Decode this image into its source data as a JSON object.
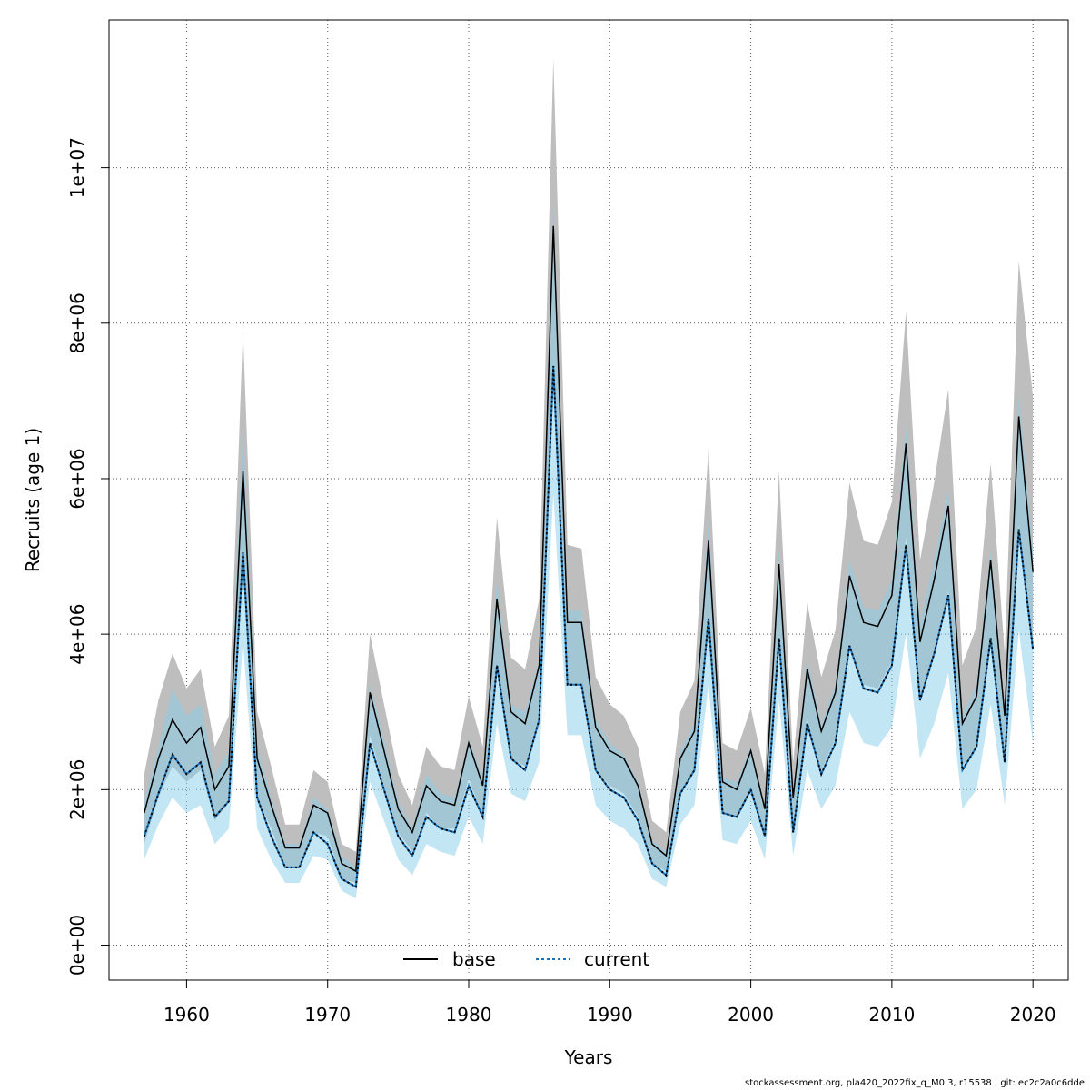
{
  "chart_data": {
    "type": "line",
    "xlabel": "Years",
    "ylabel": "Recruits (age 1)",
    "xlim": [
      1954.5,
      2022.5
    ],
    "ylim": [
      -450000,
      11900000
    ],
    "x_ticks": [
      1960,
      1970,
      1980,
      1990,
      2000,
      2010,
      2020
    ],
    "x_tick_labels": [
      "1960",
      "1970",
      "1980",
      "1990",
      "2000",
      "2010",
      "2020"
    ],
    "y_ticks": [
      0,
      2000000,
      4000000,
      6000000,
      8000000,
      10000000
    ],
    "y_tick_labels": [
      "0e+00",
      "2e+06",
      "4e+06",
      "6e+06",
      "8e+06",
      "1e+07"
    ],
    "grid": true,
    "legend_position": "bottom",
    "colors": {
      "base_line": "#000000",
      "base_band": "#bebebe",
      "current_line": "#000000",
      "current_dots": "#1a73b8",
      "current_band": "#87ceeb"
    },
    "x": [
      1957,
      1958,
      1959,
      1960,
      1961,
      1962,
      1963,
      1964,
      1965,
      1966,
      1967,
      1968,
      1969,
      1970,
      1971,
      1972,
      1973,
      1974,
      1975,
      1976,
      1977,
      1978,
      1979,
      1980,
      1981,
      1982,
      1983,
      1984,
      1985,
      1986,
      1987,
      1988,
      1989,
      1990,
      1991,
      1992,
      1993,
      1994,
      1995,
      1996,
      1997,
      1998,
      1999,
      2000,
      2001,
      2002,
      2003,
      2004,
      2005,
      2006,
      2007,
      2008,
      2009,
      2010,
      2011,
      2012,
      2013,
      2014,
      2015,
      2016,
      2017,
      2018,
      2019,
      2020
    ],
    "series": [
      {
        "name": "base",
        "values": [
          1700000,
          2400000,
          2900000,
          2600000,
          2800000,
          2000000,
          2300000,
          6100000,
          2400000,
          1800000,
          1250000,
          1250000,
          1800000,
          1700000,
          1050000,
          950000,
          3250000,
          2500000,
          1750000,
          1450000,
          2050000,
          1850000,
          1800000,
          2600000,
          2050000,
          4450000,
          3000000,
          2850000,
          3600000,
          9250000,
          4150000,
          4150000,
          2800000,
          2500000,
          2400000,
          2050000,
          1300000,
          1150000,
          2400000,
          2750000,
          5200000,
          2100000,
          2000000,
          2500000,
          1750000,
          4900000,
          1900000,
          3550000,
          2750000,
          3250000,
          4750000,
          4150000,
          4100000,
          4500000,
          6450000,
          3900000,
          4700000,
          5650000,
          2850000,
          3200000,
          4950000,
          2950000,
          6800000,
          4800000
        ],
        "lower": [
          1300000,
          1900000,
          2300000,
          2100000,
          2250000,
          1600000,
          1850000,
          4800000,
          1900000,
          1500000,
          1000000,
          1000000,
          1450000,
          1400000,
          850000,
          800000,
          2700000,
          2050000,
          1450000,
          1200000,
          1700000,
          1500000,
          1500000,
          2150000,
          1650000,
          3550000,
          2400000,
          2300000,
          2950000,
          7500000,
          3350000,
          3350000,
          2250000,
          2050000,
          1950000,
          1650000,
          1050000,
          950000,
          1950000,
          2250000,
          4200000,
          1700000,
          1650000,
          2000000,
          1400000,
          3950000,
          1550000,
          2900000,
          2250000,
          2650000,
          3850000,
          3350000,
          3300000,
          3650000,
          5250000,
          3150000,
          3800000,
          4550000,
          2300000,
          2550000,
          3950000,
          2350000,
          5400000,
          3800000
        ],
        "upper": [
          2200000,
          3150000,
          3750000,
          3300000,
          3550000,
          2550000,
          2950000,
          7900000,
          3000000,
          2300000,
          1550000,
          1550000,
          2250000,
          2100000,
          1300000,
          1200000,
          4000000,
          3100000,
          2200000,
          1800000,
          2550000,
          2300000,
          2250000,
          3200000,
          2550000,
          5500000,
          3700000,
          3550000,
          4450000,
          11400000,
          5150000,
          5100000,
          3450000,
          3100000,
          2950000,
          2550000,
          1600000,
          1450000,
          3000000,
          3400000,
          6400000,
          2600000,
          2500000,
          3050000,
          2200000,
          6100000,
          2350000,
          4400000,
          3450000,
          4050000,
          5950000,
          5200000,
          5150000,
          5700000,
          8150000,
          4950000,
          5950000,
          7150000,
          3600000,
          4100000,
          6200000,
          3750000,
          8800000,
          7050000
        ]
      },
      {
        "name": "current",
        "values": [
          1400000,
          1950000,
          2450000,
          2200000,
          2350000,
          1650000,
          1850000,
          5050000,
          1900000,
          1400000,
          1000000,
          1000000,
          1450000,
          1300000,
          850000,
          750000,
          2600000,
          2000000,
          1400000,
          1150000,
          1650000,
          1500000,
          1450000,
          2050000,
          1650000,
          3600000,
          2400000,
          2250000,
          2900000,
          7450000,
          3350000,
          3350000,
          2250000,
          2000000,
          1900000,
          1600000,
          1050000,
          900000,
          1950000,
          2250000,
          4200000,
          1700000,
          1650000,
          2000000,
          1400000,
          3950000,
          1450000,
          2850000,
          2200000,
          2600000,
          3850000,
          3300000,
          3250000,
          3600000,
          5150000,
          3150000,
          3750000,
          4500000,
          2250000,
          2550000,
          3950000,
          2350000,
          5350000,
          3800000
        ],
        "lower": [
          1100000,
          1550000,
          1900000,
          1700000,
          1800000,
          1300000,
          1500000,
          3900000,
          1500000,
          1100000,
          800000,
          800000,
          1150000,
          1100000,
          700000,
          600000,
          2100000,
          1600000,
          1100000,
          900000,
          1300000,
          1200000,
          1150000,
          1650000,
          1300000,
          2850000,
          1950000,
          1850000,
          2350000,
          5800000,
          2700000,
          2700000,
          1800000,
          1600000,
          1500000,
          1300000,
          850000,
          750000,
          1550000,
          1800000,
          3350000,
          1350000,
          1300000,
          1600000,
          1100000,
          3150000,
          1150000,
          2250000,
          1750000,
          2050000,
          3000000,
          2600000,
          2550000,
          2800000,
          4000000,
          2400000,
          2850000,
          3500000,
          1750000,
          2000000,
          3100000,
          1800000,
          4050000,
          2600000
        ],
        "upper": [
          1850000,
          2550000,
          3300000,
          2950000,
          3100000,
          2200000,
          2500000,
          6700000,
          2550000,
          1900000,
          1300000,
          1300000,
          1900000,
          1750000,
          1150000,
          1000000,
          3350000,
          2650000,
          1850000,
          1500000,
          2200000,
          1950000,
          1900000,
          2650000,
          2150000,
          4700000,
          3100000,
          3000000,
          3650000,
          9550000,
          4300000,
          4300000,
          2900000,
          2600000,
          2450000,
          2100000,
          1350000,
          1200000,
          2500000,
          2850000,
          5500000,
          2150000,
          2100000,
          2550000,
          1800000,
          5100000,
          1900000,
          3700000,
          2850000,
          3350000,
          4950000,
          4350000,
          4300000,
          4700000,
          6700000,
          4150000,
          4950000,
          5850000,
          2950000,
          3350000,
          5100000,
          3050000,
          7100000,
          5100000
        ]
      }
    ]
  },
  "legend": [
    {
      "label": "base"
    },
    {
      "label": "current"
    }
  ],
  "footer": "stockassessment.org, pla420_2022fix_q_M0.3, r15538 , git: ec2c2a0c6dde"
}
